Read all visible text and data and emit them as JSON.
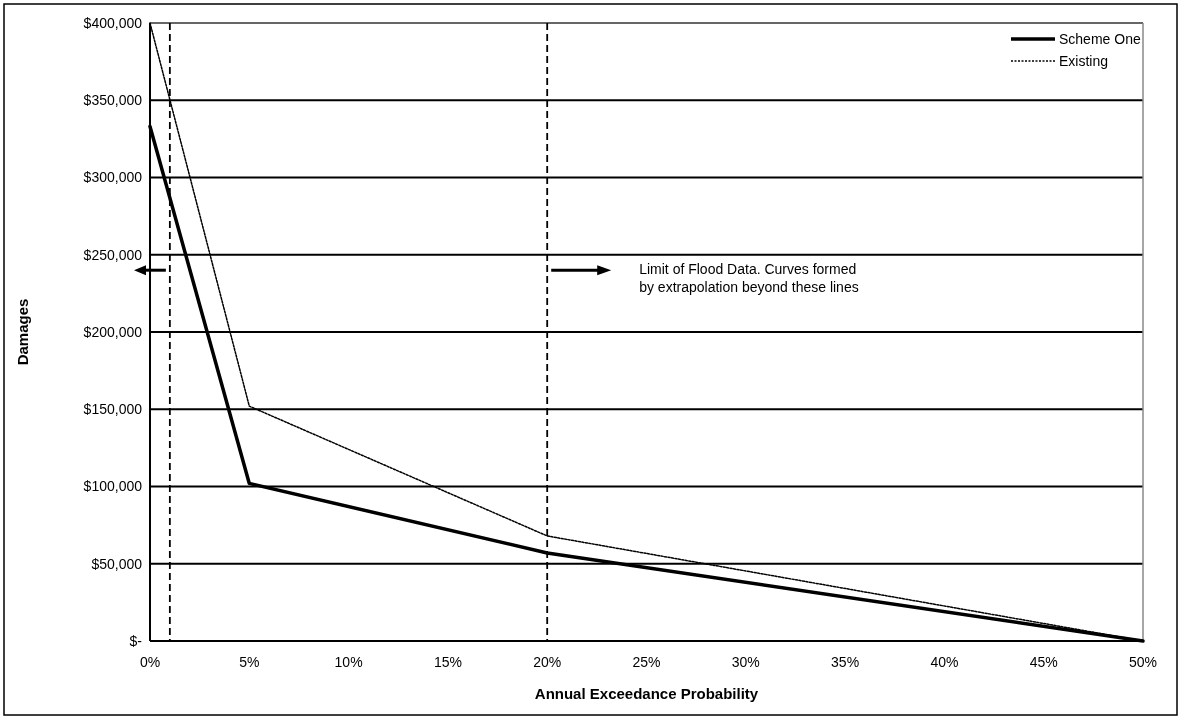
{
  "chart_data": {
    "type": "line",
    "xlabel": "Annual Exceedance Probability",
    "ylabel": "Damages",
    "x": [
      0,
      5,
      20,
      50
    ],
    "series": [
      {
        "name": "Scheme One",
        "color": "#000000",
        "values": [
          333000,
          102000,
          57000,
          0
        ],
        "line_style": "solid"
      },
      {
        "name": "Existing",
        "color": "#000000",
        "values": [
          400000,
          152000,
          68000,
          0
        ],
        "line_style": "dotted"
      }
    ],
    "xlim": [
      0,
      50
    ],
    "xticks": [
      {
        "value": 0,
        "label": "0%"
      },
      {
        "value": 5,
        "label": "5%"
      },
      {
        "value": 10,
        "label": "10%"
      },
      {
        "value": 15,
        "label": "15%"
      },
      {
        "value": 20,
        "label": "20%"
      },
      {
        "value": 25,
        "label": "25%"
      },
      {
        "value": 30,
        "label": "30%"
      },
      {
        "value": 35,
        "label": "35%"
      },
      {
        "value": 40,
        "label": "40%"
      },
      {
        "value": 45,
        "label": "45%"
      },
      {
        "value": 50,
        "label": "50%"
      }
    ],
    "ylim": [
      0,
      400000
    ],
    "yticks": [
      {
        "value": 0,
        "label": "$-"
      },
      {
        "value": 50000,
        "label": "$50,000"
      },
      {
        "value": 100000,
        "label": "$100,000"
      },
      {
        "value": 150000,
        "label": "$150,000"
      },
      {
        "value": 200000,
        "label": "$200,000"
      },
      {
        "value": 250000,
        "label": "$250,000"
      },
      {
        "value": 300000,
        "label": "$300,000"
      },
      {
        "value": 350000,
        "label": "$350,000"
      },
      {
        "value": 400000,
        "label": "$400,000"
      }
    ],
    "ref_lines": [
      {
        "axis": "x",
        "value": 1,
        "color": "#000000",
        "line_style": "dashed"
      },
      {
        "axis": "x",
        "value": 20,
        "color": "#000000",
        "line_style": "dashed"
      }
    ],
    "annotations": [
      "Limit of Flood Data.  Curves formed\nby extrapolation beyond these lines"
    ],
    "grid": "y",
    "legend": "top right",
    "marker": "none"
  }
}
